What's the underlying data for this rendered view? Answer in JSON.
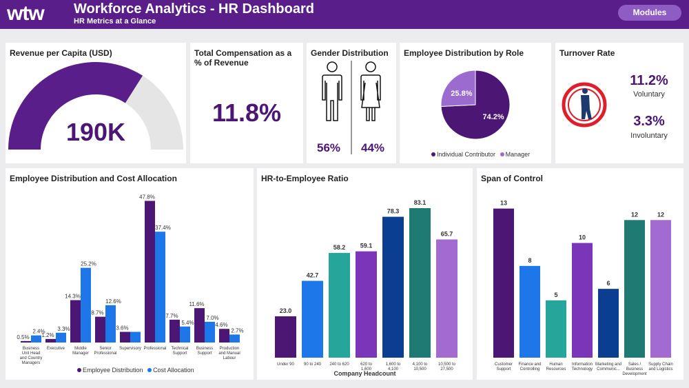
{
  "header": {
    "logo": "wtw",
    "title": "Workforce Analytics - HR Dashboard",
    "subtitle": "HR Metrics at a Glance",
    "modules_label": "Modules"
  },
  "colors": {
    "header_bg": "#5a1e8a",
    "dark_purple": "#4b1674",
    "blue": "#1e77e8",
    "teal": "#26a69a",
    "violet": "#7b35b8",
    "navy": "#0b3d91",
    "dark_teal": "#1f7a74",
    "lavender": "#a36bd1",
    "gauge_bg": "#e5e5e5",
    "red": "#e01e2b"
  },
  "revenue": {
    "title": "Revenue per Capita (USD)",
    "value_label": "190K",
    "gauge_fraction": 0.68
  },
  "compensation": {
    "title": "Total Compensation as a % of Revenue",
    "value": "11.8%"
  },
  "gender": {
    "title": "Gender Distribution",
    "male_pct": "56%",
    "female_pct": "44%",
    "male_icon": "male-person-icon",
    "female_icon": "female-person-icon"
  },
  "role": {
    "title": "Employee Distribution by Role",
    "chart_data": {
      "type": "pie",
      "categories": [
        "Individual Contributor",
        "Manager"
      ],
      "values": [
        74.2,
        25.8
      ],
      "labels": [
        "74.2%",
        "25.8%"
      ],
      "legend_position": "bottom"
    }
  },
  "turnover": {
    "title": "Turnover Rate",
    "voluntary_value": "11.2%",
    "voluntary_label": "Voluntary",
    "involuntary_value": "3.3%",
    "involuntary_label": "Involuntary",
    "icon": "walking-person-icon"
  },
  "chart_data": [
    {
      "id": "cost",
      "type": "bar",
      "title": "Employee Distribution and Cost Allocation",
      "categories": [
        "Business Unit Head and Country Managers",
        "Executive",
        "Middle Manager",
        "Senior Professional",
        "Supervisory",
        "Professional",
        "Technical Support",
        "Business Support",
        "Production and Manual Labour"
      ],
      "series": [
        {
          "name": "Employee Distribution",
          "values": [
            0.5,
            1.2,
            14.3,
            8.7,
            3.6,
            47.8,
            7.7,
            11.6,
            4.6
          ],
          "labels": [
            "0.5%",
            "1.2%",
            "14.3%",
            "8.7%",
            "3.6%",
            "47.8%",
            "7.7%",
            "11.6%",
            "4.6%"
          ]
        },
        {
          "name": "Cost Allocation",
          "values": [
            2.4,
            3.3,
            25.2,
            12.6,
            3.6,
            37.4,
            5.4,
            7.0,
            2.7
          ],
          "labels": [
            "2.4%",
            "3.3%",
            "25.2%",
            "12.6%",
            "",
            "37.4%",
            "5.4%",
            "7.0%",
            "2.7%"
          ]
        }
      ],
      "ylim": [
        0,
        50
      ],
      "legend_position": "bottom"
    },
    {
      "id": "ratio",
      "type": "bar",
      "title": "HR-to-Employee Ratio",
      "xlabel": "Company Headcount",
      "categories": [
        "Under 90",
        "90 to 240",
        "240 to 620",
        "620 to 1,600",
        "1,600 to 4,100",
        "4,100 to 10,500",
        "10,500 to 27,500"
      ],
      "values": [
        23.0,
        42.7,
        58.2,
        59.1,
        78.3,
        83.1,
        65.7
      ],
      "labels": [
        "23.0",
        "42.7",
        "58.2",
        "59.1",
        "78.3",
        "83.1",
        "65.7"
      ],
      "ylim": [
        0,
        90
      ]
    },
    {
      "id": "span",
      "type": "bar",
      "title": "Span of Control",
      "categories": [
        "Customer Support",
        "Finance and Controlling",
        "Human Resources",
        "Information Technology",
        "Marketing and Communic...",
        "Sales / Business Development",
        "Supply Chain and Logistics"
      ],
      "values": [
        13,
        8,
        5,
        10,
        6,
        12,
        12
      ],
      "labels": [
        "13",
        "8",
        "5",
        "10",
        "6",
        "12",
        "12"
      ],
      "ylim": [
        0,
        14
      ]
    }
  ]
}
